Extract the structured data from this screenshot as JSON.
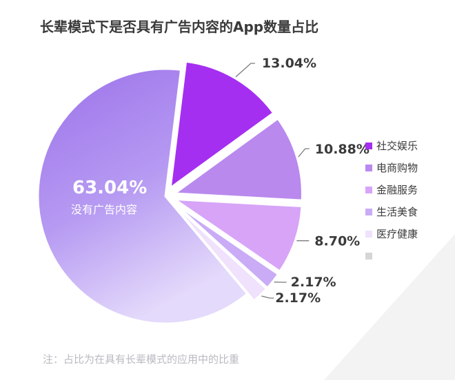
{
  "chart_data": {
    "type": "pie",
    "title": "长辈模式下是否具有广告内容的App数量占比",
    "slices": [
      {
        "label": "没有广告内容",
        "value": 63.04,
        "value_label": "63.04%",
        "color": "#a886ee",
        "legend": false
      },
      {
        "label": "社交娱乐",
        "value": 13.04,
        "value_label": "13.04%",
        "color": "#a52ff0",
        "legend": true
      },
      {
        "label": "电商购物",
        "value": 10.88,
        "value_label": "10.88%",
        "color": "#b989ee",
        "legend": true
      },
      {
        "label": "金融服务",
        "value": 8.7,
        "value_label": "8.70%",
        "color": "#d7a4f8",
        "legend": true
      },
      {
        "label": "生活美食",
        "value": 2.17,
        "value_label": "2.17%",
        "color": "#c9abf6",
        "legend": true
      },
      {
        "label": "医疗健康",
        "value": 2.17,
        "value_label": "2.17%",
        "color": "#f0e1fc",
        "legend": true
      }
    ],
    "legend_placement": "right",
    "legend_extra_color": "#d6d6d6"
  },
  "note": "注：占比为在具有长辈模式的应用中的比重"
}
